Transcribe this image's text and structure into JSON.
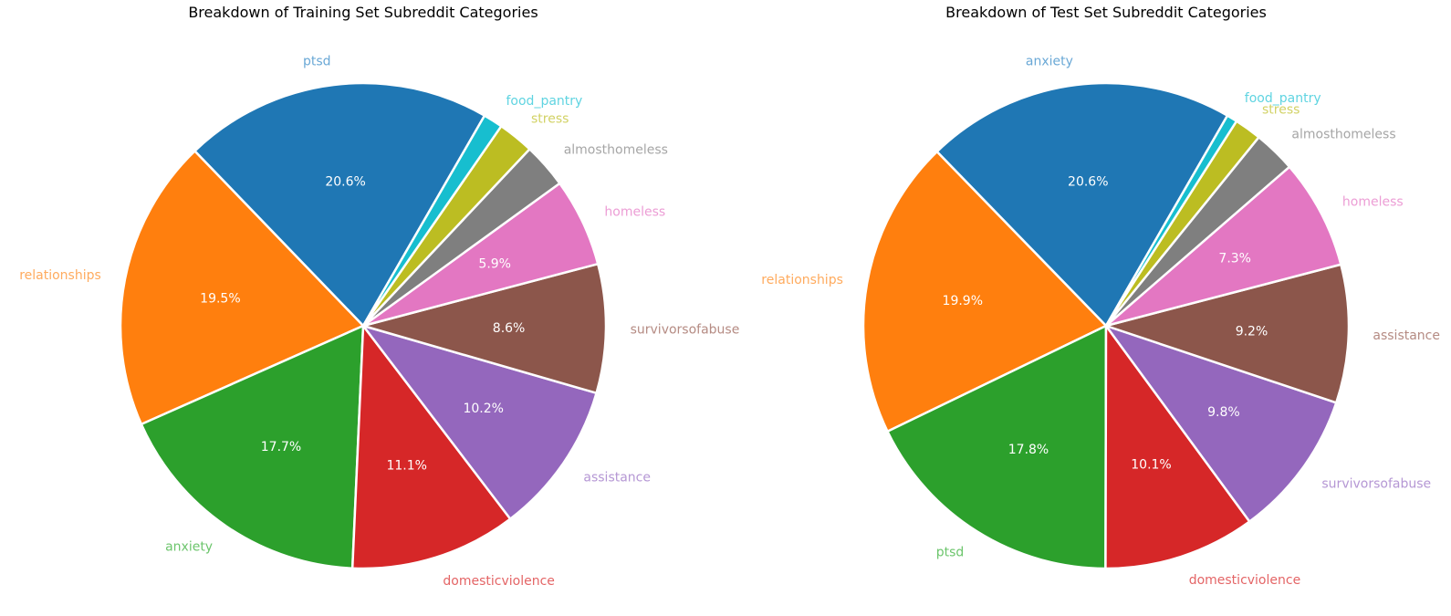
{
  "chart_data": [
    {
      "type": "pie",
      "title": "Breakdown of Training Set Subreddit Categories",
      "start_angle_deg": 60,
      "direction": "counterclockwise",
      "slices": [
        {
          "label": "ptsd",
          "value": 20.6,
          "pct_label": "20.6%",
          "color": "#1f77b4",
          "label_color": "#6aa8d6"
        },
        {
          "label": "relationships",
          "value": 19.5,
          "pct_label": "19.5%",
          "color": "#ff7f0e",
          "label_color": "#ffab5e"
        },
        {
          "label": "anxiety",
          "value": 17.7,
          "pct_label": "17.7%",
          "color": "#2ca02c",
          "label_color": "#6cc56c"
        },
        {
          "label": "domesticviolence",
          "value": 11.1,
          "pct_label": "11.1%",
          "color": "#d62728",
          "label_color": "#e46566"
        },
        {
          "label": "assistance",
          "value": 10.2,
          "pct_label": "10.2%",
          "color": "#9467bd",
          "label_color": "#b597d4"
        },
        {
          "label": "survivorsofabuse",
          "value": 8.6,
          "pct_label": "8.6%",
          "color": "#8c564b",
          "label_color": "#b58b83"
        },
        {
          "label": "homeless",
          "value": 5.9,
          "pct_label": "5.9%",
          "color": "#e377c2",
          "label_color": "#ec9dd5"
        },
        {
          "label": "almosthomeless",
          "value": 3.0,
          "pct_label": "",
          "color": "#7f7f7f",
          "label_color": "#a6a6a6"
        },
        {
          "label": "stress",
          "value": 2.4,
          "pct_label": "",
          "color": "#bcbd22",
          "label_color": "#d2d265"
        },
        {
          "label": "food_pantry",
          "value": 1.3,
          "pct_label": "",
          "color": "#17becf",
          "label_color": "#5fd4e1"
        }
      ]
    },
    {
      "type": "pie",
      "title": "Breakdown of Test Set Subreddit Categories",
      "start_angle_deg": 60,
      "direction": "counterclockwise",
      "slices": [
        {
          "label": "anxiety",
          "value": 20.6,
          "pct_label": "20.6%",
          "color": "#1f77b4",
          "label_color": "#6aa8d6"
        },
        {
          "label": "relationships",
          "value": 19.9,
          "pct_label": "19.9%",
          "color": "#ff7f0e",
          "label_color": "#ffab5e"
        },
        {
          "label": "ptsd",
          "value": 17.8,
          "pct_label": "17.8%",
          "color": "#2ca02c",
          "label_color": "#6cc56c"
        },
        {
          "label": "domesticviolence",
          "value": 10.1,
          "pct_label": "10.1%",
          "color": "#d62728",
          "label_color": "#e46566"
        },
        {
          "label": "survivorsofabuse",
          "value": 9.8,
          "pct_label": "9.8%",
          "color": "#9467bd",
          "label_color": "#b597d4"
        },
        {
          "label": "assistance",
          "value": 9.2,
          "pct_label": "9.2%",
          "color": "#8c564b",
          "label_color": "#b58b83"
        },
        {
          "label": "homeless",
          "value": 7.3,
          "pct_label": "7.3%",
          "color": "#e377c2",
          "label_color": "#ec9dd5"
        },
        {
          "label": "almosthomeless",
          "value": 2.8,
          "pct_label": "",
          "color": "#7f7f7f",
          "label_color": "#a6a6a6"
        },
        {
          "label": "stress",
          "value": 1.8,
          "pct_label": "",
          "color": "#bcbd22",
          "label_color": "#d2d265"
        },
        {
          "label": "food_pantry",
          "value": 0.7,
          "pct_label": "",
          "color": "#17becf",
          "label_color": "#5fd4e1"
        }
      ]
    }
  ]
}
